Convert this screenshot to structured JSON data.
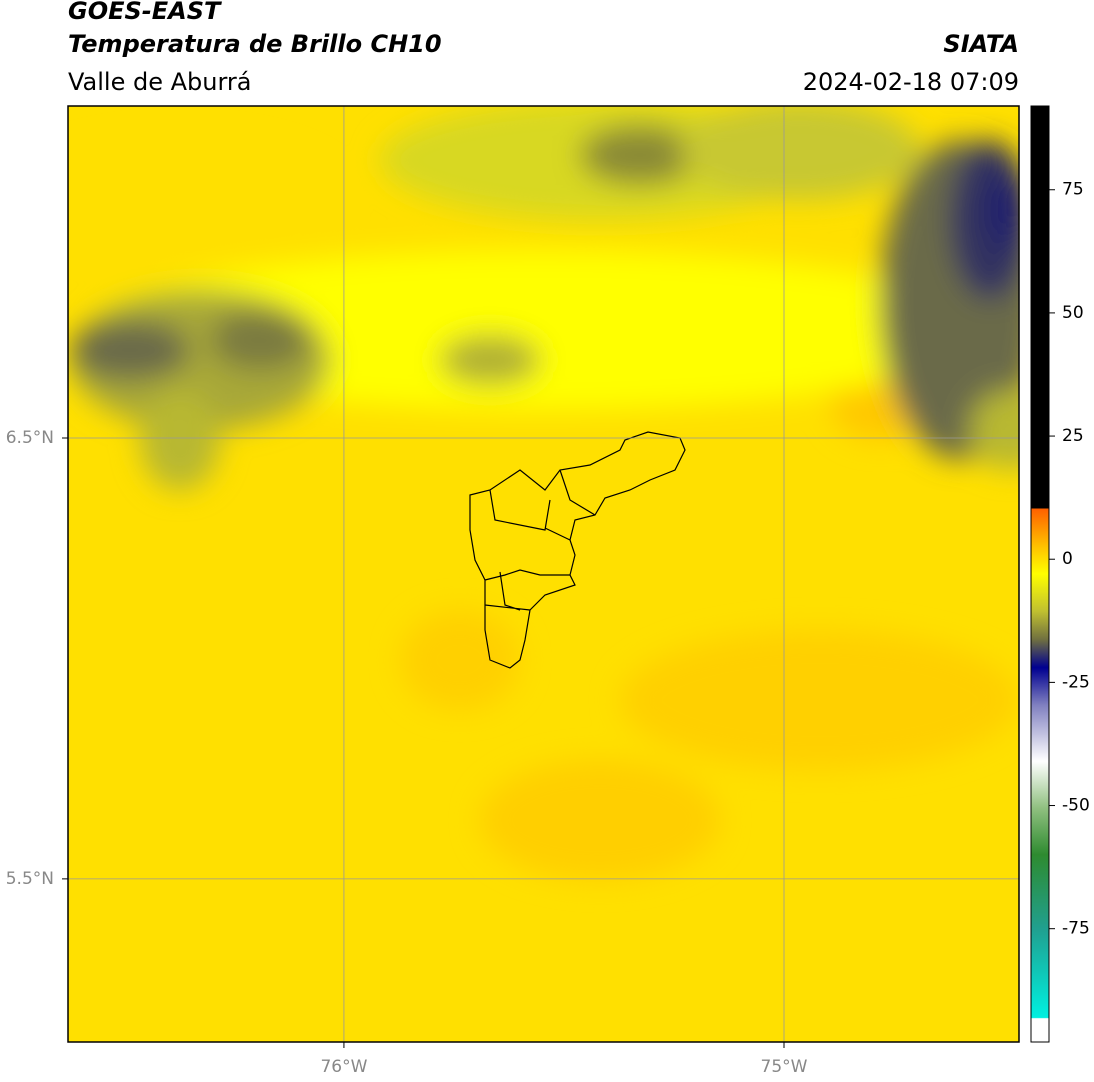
{
  "header": {
    "title": "GOES-EAST",
    "subtitle": "Temperatura de Brillo CH10",
    "brand": "SIATA",
    "region": "Valle de Aburrá",
    "datetime": "2024-02-18 07:09"
  },
  "map": {
    "lon_lim": [
      -76.627,
      -74.466
    ],
    "lat_lim": [
      5.13,
      7.253
    ],
    "lon_ticks": [
      {
        "value": -76,
        "label": "76°W"
      },
      {
        "value": -75,
        "label": "75°W"
      }
    ],
    "lat_ticks": [
      {
        "value": 6.5,
        "label": "6.5°N"
      },
      {
        "value": 5.5,
        "label": "5.5°N"
      }
    ],
    "grid": true
  },
  "colorbar": {
    "lim": [
      -98,
      92
    ],
    "ticks": [
      75,
      50,
      25,
      0,
      -25,
      -50,
      -75
    ]
  }
}
